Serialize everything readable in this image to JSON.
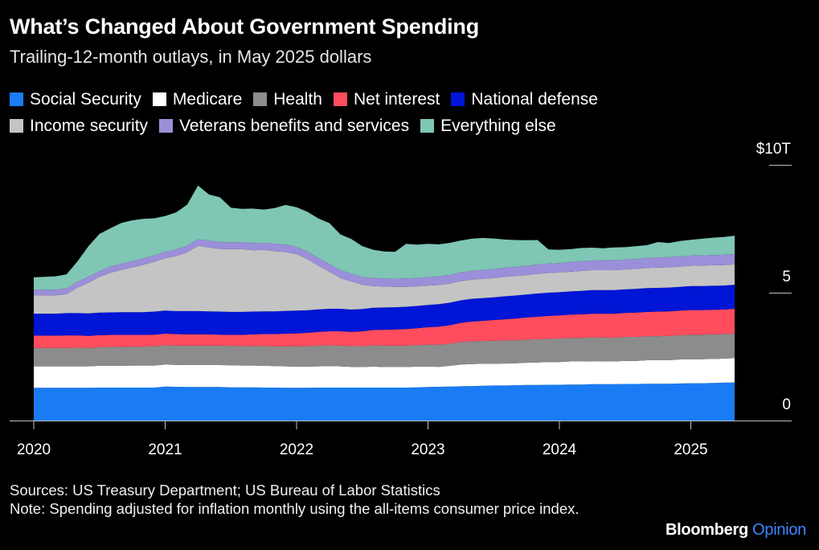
{
  "title": "What’s Changed About Government Spending",
  "subtitle": "Trailing-12-month outlays, in May 2025 dollars",
  "sources": "Sources: US Treasury Department; US Bureau of Labor Statistics",
  "note": "Note: Spending adjusted for inflation monthly using the all-items consumer price index.",
  "brand": {
    "name": "Bloomberg",
    "suffix": "Opinion"
  },
  "chart_data": {
    "type": "area",
    "stacked": true,
    "x_start": "2020-01",
    "x_end": "2025-05",
    "x_ticks": [
      "2020",
      "2021",
      "2022",
      "2023",
      "2024",
      "2025"
    ],
    "y_ticks": [
      {
        "value": 0,
        "label": "0"
      },
      {
        "value": 5,
        "label": "5"
      },
      {
        "value": 10,
        "label": "$10T"
      }
    ],
    "ylim": [
      0,
      10
    ],
    "grid": false,
    "legend_position": "top",
    "points_per_month": true,
    "series": [
      {
        "name": "Social Security",
        "color": "#1a7cf5",
        "values": [
          1.28,
          1.28,
          1.28,
          1.28,
          1.28,
          1.28,
          1.29,
          1.29,
          1.29,
          1.29,
          1.29,
          1.29,
          1.33,
          1.32,
          1.31,
          1.31,
          1.31,
          1.31,
          1.3,
          1.3,
          1.3,
          1.29,
          1.29,
          1.28,
          1.28,
          1.28,
          1.29,
          1.29,
          1.29,
          1.29,
          1.29,
          1.29,
          1.29,
          1.29,
          1.29,
          1.3,
          1.31,
          1.32,
          1.33,
          1.34,
          1.35,
          1.36,
          1.37,
          1.37,
          1.38,
          1.39,
          1.39,
          1.4,
          1.4,
          1.41,
          1.41,
          1.42,
          1.42,
          1.42,
          1.43,
          1.43,
          1.44,
          1.44,
          1.44,
          1.45,
          1.46,
          1.46,
          1.47,
          1.48,
          1.49
        ]
      },
      {
        "name": "Medicare",
        "color": "#ffffff",
        "values": [
          0.84,
          0.84,
          0.84,
          0.84,
          0.84,
          0.84,
          0.85,
          0.85,
          0.85,
          0.86,
          0.86,
          0.86,
          0.86,
          0.86,
          0.86,
          0.86,
          0.86,
          0.86,
          0.86,
          0.85,
          0.85,
          0.85,
          0.84,
          0.84,
          0.83,
          0.83,
          0.83,
          0.84,
          0.83,
          0.81,
          0.8,
          0.82,
          0.8,
          0.8,
          0.8,
          0.81,
          0.8,
          0.78,
          0.81,
          0.85,
          0.86,
          0.86,
          0.85,
          0.86,
          0.86,
          0.87,
          0.88,
          0.89,
          0.89,
          0.9,
          0.9,
          0.9,
          0.9,
          0.89,
          0.9,
          0.9,
          0.92,
          0.92,
          0.92,
          0.94,
          0.94,
          0.94,
          0.94,
          0.94,
          0.95
        ]
      },
      {
        "name": "Health",
        "color": "#8c8c8c",
        "values": [
          0.72,
          0.72,
          0.72,
          0.72,
          0.73,
          0.72,
          0.73,
          0.74,
          0.74,
          0.74,
          0.74,
          0.75,
          0.75,
          0.75,
          0.76,
          0.76,
          0.76,
          0.76,
          0.76,
          0.76,
          0.77,
          0.77,
          0.77,
          0.78,
          0.79,
          0.8,
          0.81,
          0.81,
          0.81,
          0.81,
          0.82,
          0.83,
          0.84,
          0.84,
          0.84,
          0.84,
          0.86,
          0.87,
          0.87,
          0.88,
          0.89,
          0.89,
          0.9,
          0.9,
          0.9,
          0.91,
          0.91,
          0.91,
          0.92,
          0.92,
          0.92,
          0.93,
          0.93,
          0.93,
          0.94,
          0.94,
          0.94,
          0.94,
          0.95,
          0.95,
          0.96,
          0.96,
          0.96,
          0.96,
          0.96
        ]
      },
      {
        "name": "Net interest",
        "color": "#ff4d5e",
        "values": [
          0.48,
          0.48,
          0.48,
          0.49,
          0.48,
          0.47,
          0.47,
          0.47,
          0.47,
          0.46,
          0.46,
          0.46,
          0.46,
          0.45,
          0.44,
          0.44,
          0.44,
          0.43,
          0.43,
          0.44,
          0.45,
          0.47,
          0.48,
          0.5,
          0.51,
          0.52,
          0.54,
          0.55,
          0.56,
          0.56,
          0.58,
          0.6,
          0.62,
          0.63,
          0.65,
          0.66,
          0.68,
          0.7,
          0.72,
          0.75,
          0.77,
          0.79,
          0.81,
          0.83,
          0.85,
          0.86,
          0.88,
          0.89,
          0.9,
          0.91,
          0.92,
          0.93,
          0.93,
          0.94,
          0.94,
          0.95,
          0.95,
          0.96,
          0.96,
          0.96,
          0.96,
          0.96,
          0.96,
          0.96,
          0.97
        ]
      },
      {
        "name": "National defense",
        "color": "#0015d6",
        "values": [
          0.86,
          0.86,
          0.86,
          0.87,
          0.87,
          0.88,
          0.88,
          0.88,
          0.89,
          0.89,
          0.89,
          0.9,
          0.9,
          0.9,
          0.91,
          0.91,
          0.9,
          0.9,
          0.9,
          0.9,
          0.89,
          0.89,
          0.89,
          0.89,
          0.89,
          0.88,
          0.88,
          0.88,
          0.88,
          0.87,
          0.87,
          0.87,
          0.87,
          0.87,
          0.87,
          0.87,
          0.87,
          0.88,
          0.88,
          0.88,
          0.89,
          0.89,
          0.89,
          0.9,
          0.9,
          0.9,
          0.91,
          0.91,
          0.91,
          0.91,
          0.92,
          0.92,
          0.92,
          0.92,
          0.92,
          0.93,
          0.93,
          0.93,
          0.93,
          0.93,
          0.94,
          0.94,
          0.94,
          0.94,
          0.94
        ]
      },
      {
        "name": "Income security",
        "color": "#c4c4c4",
        "values": [
          0.72,
          0.72,
          0.72,
          0.74,
          1.0,
          1.2,
          1.4,
          1.55,
          1.65,
          1.75,
          1.85,
          1.95,
          2.05,
          2.15,
          2.3,
          2.55,
          2.5,
          2.45,
          2.45,
          2.45,
          2.4,
          2.4,
          2.35,
          2.3,
          2.2,
          2.0,
          1.7,
          1.45,
          1.2,
          1.1,
          0.95,
          0.85,
          0.82,
          0.8,
          0.78,
          0.77,
          0.76,
          0.75,
          0.75,
          0.75,
          0.75,
          0.75,
          0.75,
          0.76,
          0.76,
          0.76,
          0.77,
          0.77,
          0.77,
          0.77,
          0.78,
          0.78,
          0.78,
          0.78,
          0.78,
          0.78,
          0.79,
          0.79,
          0.79,
          0.79,
          0.79,
          0.8,
          0.8,
          0.8,
          0.8
        ]
      },
      {
        "name": "Veterans benefits and services",
        "color": "#9b8fd9",
        "values": [
          0.22,
          0.22,
          0.22,
          0.23,
          0.23,
          0.23,
          0.23,
          0.24,
          0.24,
          0.24,
          0.25,
          0.25,
          0.25,
          0.26,
          0.26,
          0.26,
          0.27,
          0.27,
          0.27,
          0.28,
          0.28,
          0.28,
          0.29,
          0.29,
          0.29,
          0.3,
          0.3,
          0.3,
          0.31,
          0.31,
          0.31,
          0.32,
          0.32,
          0.32,
          0.33,
          0.33,
          0.33,
          0.34,
          0.34,
          0.34,
          0.35,
          0.35,
          0.35,
          0.36,
          0.36,
          0.36,
          0.37,
          0.37,
          0.37,
          0.38,
          0.38,
          0.38,
          0.38,
          0.39,
          0.39,
          0.39,
          0.39,
          0.4,
          0.4,
          0.4,
          0.4,
          0.4,
          0.4,
          0.4,
          0.4
        ]
      },
      {
        "name": "Everything else",
        "color": "#7fc6b5",
        "values": [
          0.48,
          0.5,
          0.52,
          0.55,
          0.8,
          1.2,
          1.45,
          1.5,
          1.6,
          1.6,
          1.55,
          1.45,
          1.4,
          1.45,
          1.6,
          2.1,
          1.8,
          1.75,
          1.35,
          1.3,
          1.35,
          1.3,
          1.4,
          1.55,
          1.55,
          1.55,
          1.55,
          1.6,
          1.4,
          1.35,
          1.2,
          1.1,
          1.05,
          1.05,
          1.35,
          1.3,
          1.3,
          1.25,
          1.25,
          1.25,
          1.25,
          1.25,
          1.2,
          1.1,
          1.05,
          1.0,
          0.95,
          0.55,
          0.52,
          0.5,
          0.52,
          0.5,
          0.48,
          0.5,
          0.48,
          0.5,
          0.5,
          0.6,
          0.55,
          0.6,
          0.62,
          0.65,
          0.68,
          0.7,
          0.72
        ]
      }
    ]
  }
}
